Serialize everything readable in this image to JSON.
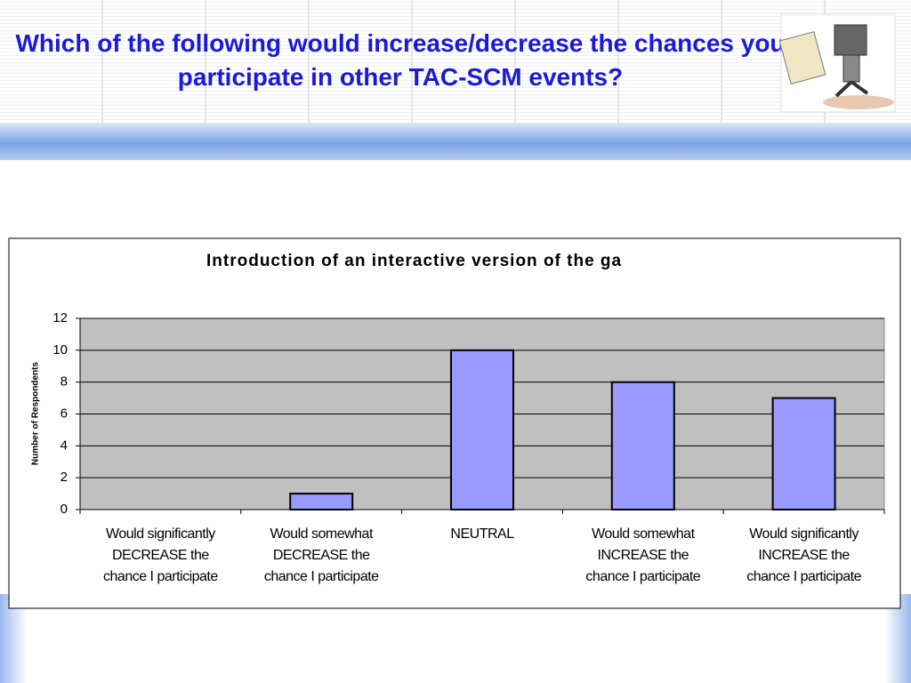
{
  "slide_title": "Which of the following would increase/decrease the chances you participate in other TAC-SCM events?",
  "chart_data": {
    "type": "bar",
    "title": "Introduction of an interactive version of the ga",
    "y_label": "Number of Respondents",
    "categories": [
      [
        "Would significantly",
        "DECREASE the",
        "chance I participate"
      ],
      [
        "Would somewhat",
        "DECREASE the",
        "chance I participate"
      ],
      [
        "NEUTRAL"
      ],
      [
        "Would somewhat",
        "INCREASE the",
        "chance I participate"
      ],
      [
        "Would significantly",
        "INCREASE the",
        "chance I participate"
      ]
    ],
    "values": [
      0,
      1,
      10,
      8,
      7
    ],
    "color": "#9999ff",
    "ylim": [
      0,
      12
    ],
    "yticks": [
      0,
      2,
      4,
      6,
      8,
      10,
      12
    ],
    "grid": true
  }
}
